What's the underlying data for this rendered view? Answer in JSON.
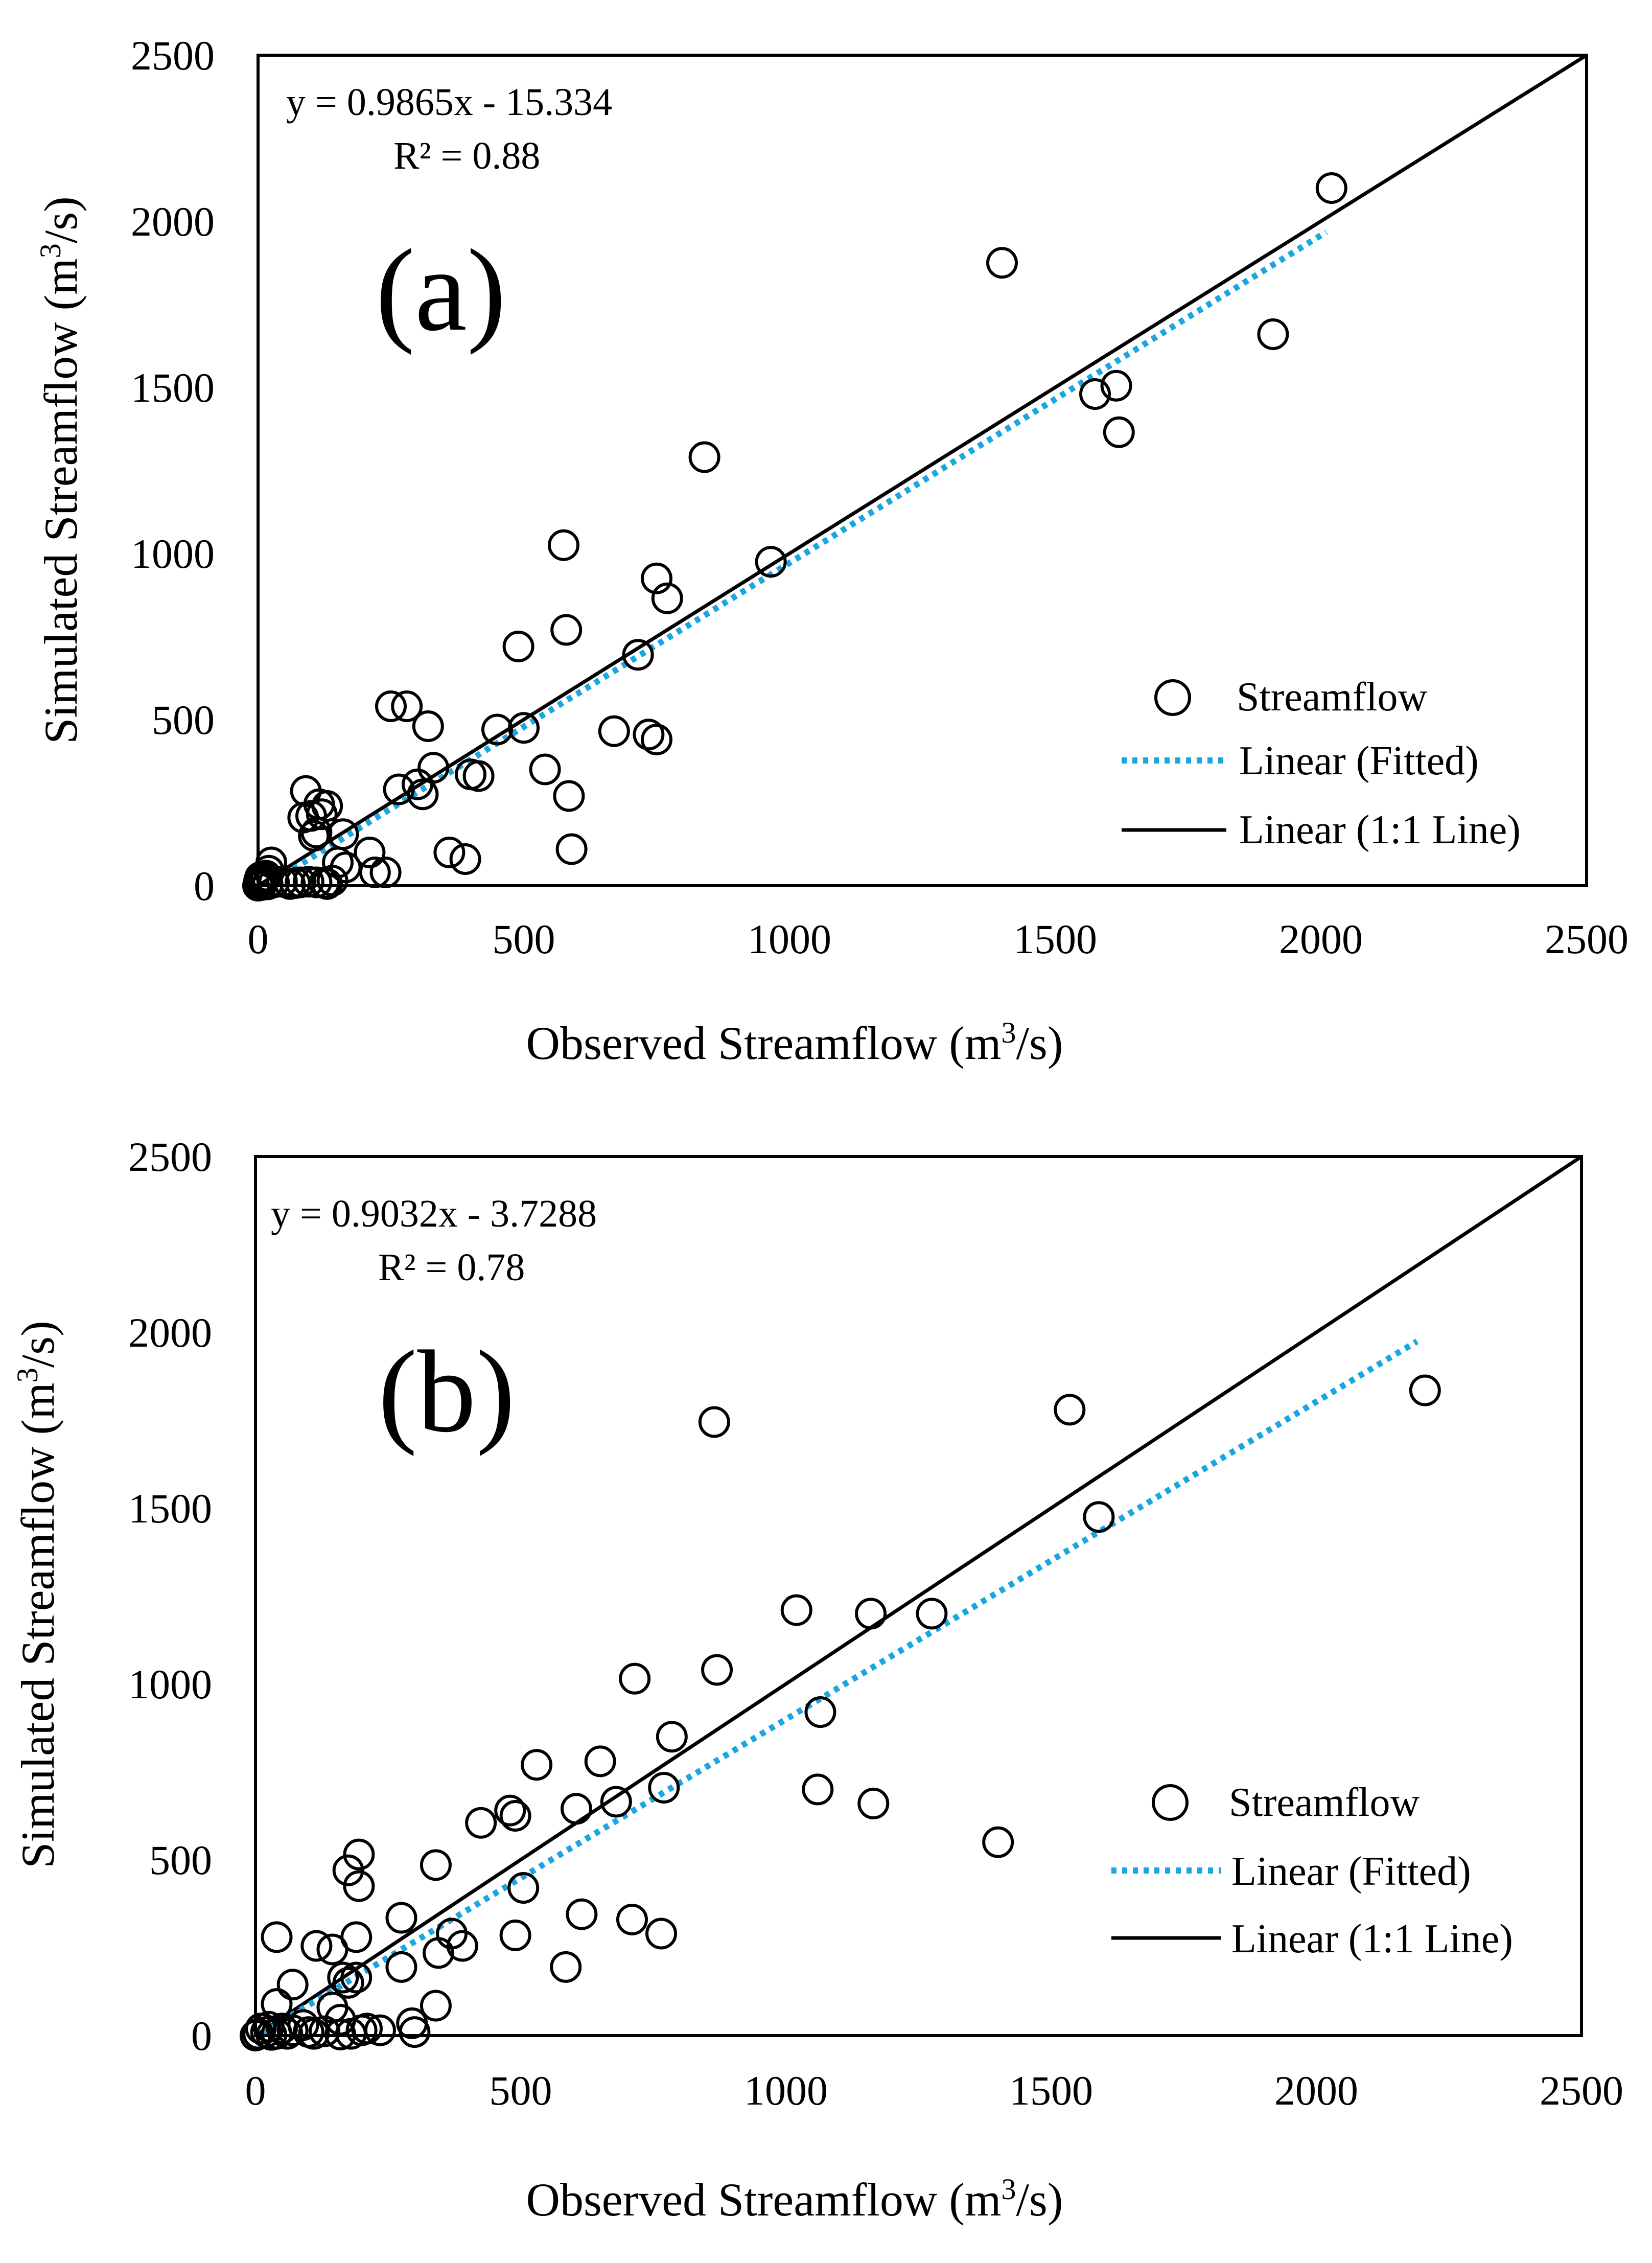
{
  "colors": {
    "marker": "#000000",
    "fitted_line": "#1AA7E0",
    "one_to_one_line": "#000000",
    "axis": "#000000",
    "background": "#ffffff"
  },
  "chart_data": [
    {
      "panel": "a",
      "type": "scatter",
      "panel_label": "(a)",
      "title": "",
      "xlabel": "Observed Streamflow (m",
      "ylabel": "Simulated Streamflow (m",
      "unit_superscript": "3",
      "unit_suffix": "/s)",
      "xlim": [
        0,
        2500
      ],
      "ylim": [
        0,
        2500
      ],
      "xticks": [
        "0",
        "500",
        "1000",
        "1500",
        "2000",
        "2500"
      ],
      "yticks": [
        "0",
        "500",
        "1000",
        "1500",
        "2000",
        "2500"
      ],
      "grid": false,
      "equation": "y = 0.9865x - 15.334",
      "r2_text": "R² = 0.88",
      "legend_position": "bottom-right",
      "legend": [
        "Streamflow",
        "Linear (Fitted)",
        "Linear (1:1 Line)"
      ],
      "fit": {
        "slope": 0.9865,
        "intercept": -15.334,
        "x_range": [
          15,
          2010
        ]
      },
      "one_to_one": {
        "x_range": [
          0,
          2500
        ]
      },
      "series": [
        {
          "name": "Streamflow",
          "points": [
            [
              2020,
              2100
            ],
            [
              1400,
              1875
            ],
            [
              1910,
              1660
            ],
            [
              1575,
              1480
            ],
            [
              1615,
              1505
            ],
            [
              1620,
              1365
            ],
            [
              840,
              1290
            ],
            [
              575,
              1025
            ],
            [
              965,
              975
            ],
            [
              750,
              925
            ],
            [
              770,
              865
            ],
            [
              580,
              770
            ],
            [
              490,
              720
            ],
            [
              715,
              695
            ],
            [
              250,
              540
            ],
            [
              280,
              540
            ],
            [
              320,
              480
            ],
            [
              450,
              470
            ],
            [
              500,
              475
            ],
            [
              670,
              465
            ],
            [
              735,
              455
            ],
            [
              750,
              440
            ],
            [
              540,
              350
            ],
            [
              330,
              355
            ],
            [
              400,
              335
            ],
            [
              415,
              330
            ],
            [
              300,
              305
            ],
            [
              265,
              290
            ],
            [
              310,
              275
            ],
            [
              585,
              270
            ],
            [
              90,
              285
            ],
            [
              115,
              245
            ],
            [
              130,
              240
            ],
            [
              100,
              210
            ],
            [
              120,
              215
            ],
            [
              85,
              205
            ],
            [
              110,
              160
            ],
            [
              160,
              155
            ],
            [
              105,
              150
            ],
            [
              590,
              110
            ],
            [
              210,
              100
            ],
            [
              360,
              100
            ],
            [
              390,
              80
            ],
            [
              150,
              70
            ],
            [
              165,
              55
            ],
            [
              220,
              40
            ],
            [
              240,
              40
            ],
            [
              25,
              70
            ],
            [
              20,
              45
            ],
            [
              15,
              30
            ],
            [
              10,
              20
            ],
            [
              5,
              10
            ],
            [
              3,
              5
            ],
            [
              8,
              12
            ],
            [
              12,
              25
            ],
            [
              30,
              10
            ],
            [
              45,
              12
            ],
            [
              60,
              5
            ],
            [
              70,
              8
            ],
            [
              80,
              10
            ],
            [
              95,
              12
            ],
            [
              110,
              10
            ],
            [
              125,
              8
            ],
            [
              130,
              5
            ],
            [
              140,
              15
            ],
            [
              0,
              0
            ],
            [
              6,
              2
            ],
            [
              18,
              4
            ],
            [
              2,
              15
            ],
            [
              4,
              25
            ]
          ]
        }
      ]
    },
    {
      "panel": "b",
      "type": "scatter",
      "panel_label": "(b)",
      "title": "",
      "xlabel": "Observed Streamflow (m",
      "ylabel": "Simulated Streamflow (m",
      "unit_superscript": "3",
      "unit_suffix": "/s)",
      "xlim": [
        0,
        2500
      ],
      "ylim": [
        0,
        2500
      ],
      "xticks": [
        "0",
        "500",
        "1000",
        "1500",
        "2000",
        "2500"
      ],
      "yticks": [
        "0",
        "500",
        "1000",
        "1500",
        "2000",
        "2500"
      ],
      "grid": false,
      "equation": "y = 0.9032x - 3.7288",
      "r2_text": "R² = 0.78",
      "legend_position": "bottom-right",
      "legend": [
        "Streamflow",
        "Linear (Fitted)",
        "Linear (1:1 Line)"
      ],
      "fit": {
        "slope": 0.9032,
        "intercept": -3.7288,
        "x_range": [
          15,
          2190
        ]
      },
      "one_to_one": {
        "x_range": [
          0,
          2500
        ]
      },
      "series": [
        {
          "name": "Streamflow",
          "points": [
            [
              2205,
              1835
            ],
            [
              1535,
              1780
            ],
            [
              865,
              1745
            ],
            [
              1590,
              1475
            ],
            [
              1020,
              1210
            ],
            [
              1160,
              1200
            ],
            [
              1275,
              1200
            ],
            [
              870,
              1040
            ],
            [
              715,
              1015
            ],
            [
              1065,
              920
            ],
            [
              785,
              850
            ],
            [
              530,
              770
            ],
            [
              650,
              780
            ],
            [
              770,
              705
            ],
            [
              1060,
              700
            ],
            [
              680,
              665
            ],
            [
              1165,
              660
            ],
            [
              605,
              645
            ],
            [
              480,
              640
            ],
            [
              490,
              625
            ],
            [
              425,
              605
            ],
            [
              1400,
              550
            ],
            [
              340,
              485
            ],
            [
              195,
              515
            ],
            [
              175,
              470
            ],
            [
              195,
              425
            ],
            [
              505,
              420
            ],
            [
              275,
              335
            ],
            [
              615,
              345
            ],
            [
              710,
              330
            ],
            [
              490,
              285
            ],
            [
              765,
              290
            ],
            [
              370,
              290
            ],
            [
              190,
              280
            ],
            [
              40,
              280
            ],
            [
              115,
              255
            ],
            [
              145,
              245
            ],
            [
              390,
              255
            ],
            [
              345,
              235
            ],
            [
              275,
              195
            ],
            [
              585,
              195
            ],
            [
              165,
              165
            ],
            [
              190,
              165
            ],
            [
              70,
              145
            ],
            [
              175,
              150
            ],
            [
              340,
              85
            ],
            [
              40,
              90
            ],
            [
              145,
              80
            ],
            [
              160,
              45
            ],
            [
              295,
              35
            ],
            [
              300,
              10
            ],
            [
              210,
              20
            ],
            [
              235,
              15
            ],
            [
              200,
              15
            ],
            [
              180,
              5
            ],
            [
              160,
              3
            ],
            [
              90,
              30
            ],
            [
              70,
              15
            ],
            [
              100,
              10
            ],
            [
              60,
              5
            ],
            [
              40,
              5
            ],
            [
              20,
              10
            ],
            [
              10,
              20
            ],
            [
              5,
              5
            ],
            [
              0,
              0
            ],
            [
              25,
              25
            ],
            [
              110,
              5
            ],
            [
              130,
              12
            ],
            [
              50,
              20
            ],
            [
              30,
              2
            ]
          ]
        }
      ]
    }
  ]
}
